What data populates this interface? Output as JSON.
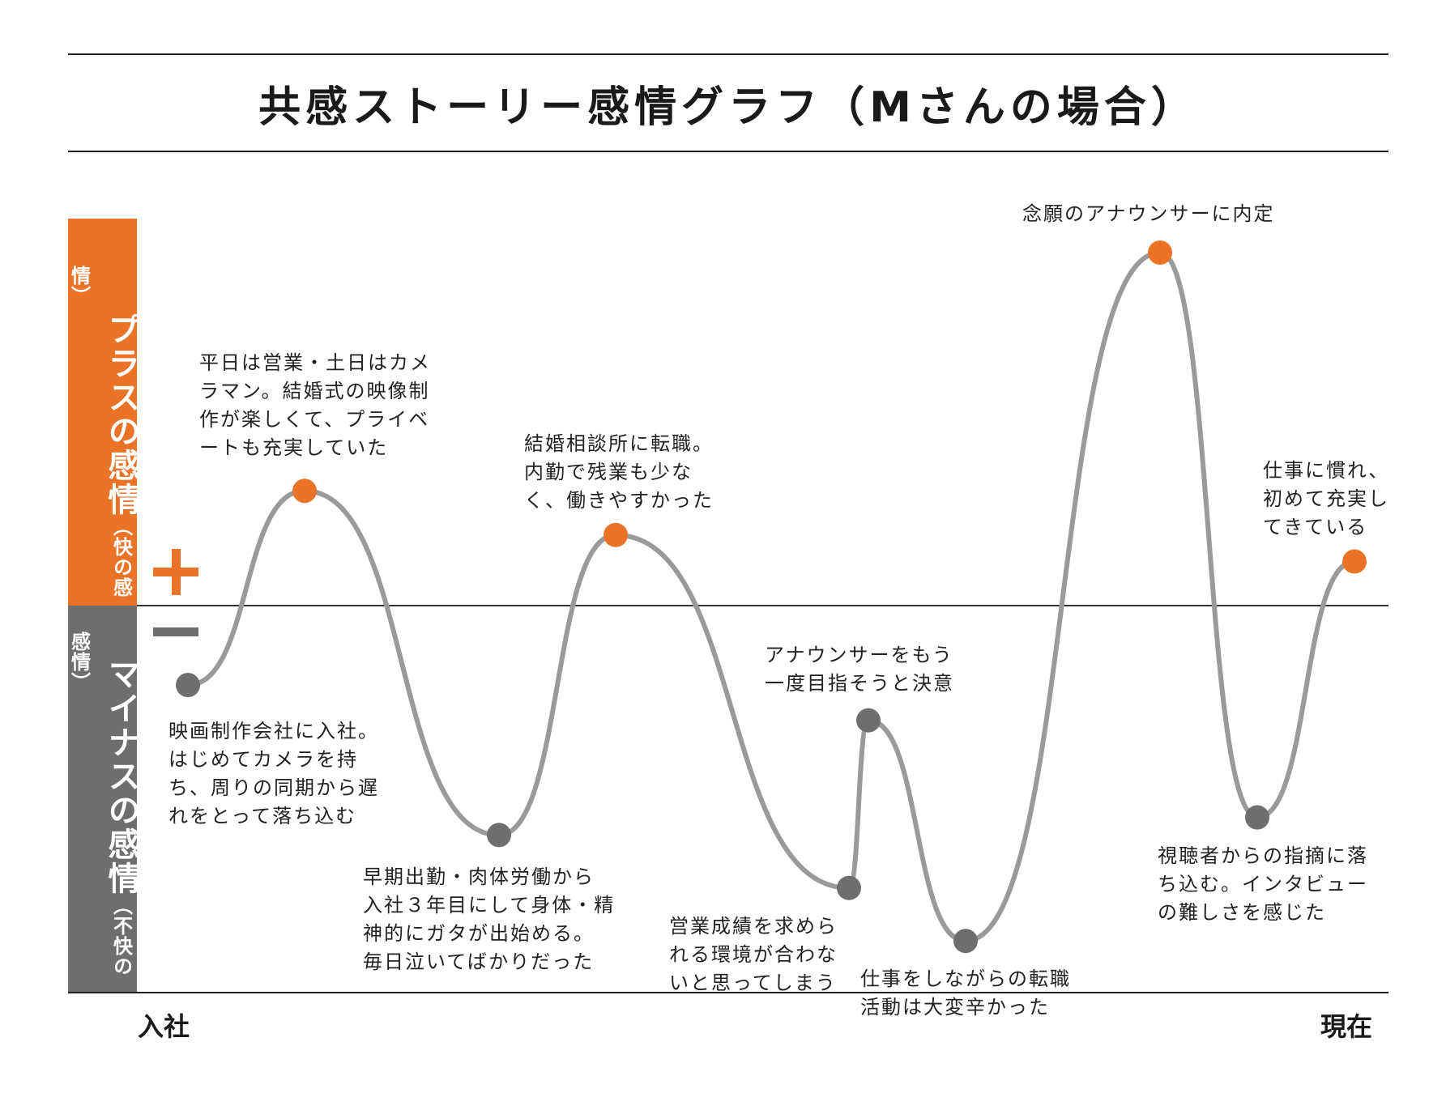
{
  "title": "共感ストーリー感情グラフ（Mさんの場合）",
  "bands": {
    "plus": {
      "label": "プラスの感情",
      "sub": "（快の感情）",
      "color": "#ea7327"
    },
    "minus": {
      "label": "マイナスの感情",
      "sub": "（不快の感情）",
      "color": "#6e6e6e"
    }
  },
  "chart_data": {
    "type": "line",
    "title": "共感ストーリー感情グラフ（Mさんの場合）",
    "xlabel": "",
    "ylabel": "",
    "x_start_label": "入社",
    "x_end_label": "現在",
    "ylim": [
      -5,
      5
    ],
    "grid": false,
    "zero_line": true,
    "colors": {
      "positive": "#ea7327",
      "negative": "#6e6e6e",
      "line": "#9a9a9a"
    },
    "points": [
      {
        "x": 0.0,
        "y": -0.9,
        "label": "映画制作会社に入社。\nはじめてカメラを持\nち、周りの同期から遅\nれをとって落ち込む"
      },
      {
        "x": 0.6,
        "y": 1.3,
        "label": "平日は営業・土日はカメ\nラマン。結婚式の映像制\n作が楽しくて、プライベ\nートも充実していた"
      },
      {
        "x": 1.6,
        "y": -2.6,
        "label": "早期出勤・肉体労働から\n入社３年目にして身体・精\n神的にガタが出始める。\n毎日泣いてばかりだった"
      },
      {
        "x": 2.2,
        "y": 0.8,
        "label": "結婚相談所に転職。\n内勤で残業も少な\nく、働きやすかった"
      },
      {
        "x": 3.4,
        "y": -3.2,
        "label": "営業成績を求めら\nれる環境が合わな\nいと思ってしまう"
      },
      {
        "x": 3.5,
        "y": -1.3,
        "label": "アナウンサーをもう\n一度目指そうと決意"
      },
      {
        "x": 4.0,
        "y": -3.8,
        "label": "仕事をしながらの転職\n活動は大変辛かった"
      },
      {
        "x": 5.0,
        "y": 4.0,
        "label": "念願のアナウンサーに内定"
      },
      {
        "x": 5.5,
        "y": -2.4,
        "label": "視聴者からの指摘に落\nち込む。インタビュー\nの難しさを感じた"
      },
      {
        "x": 6.0,
        "y": 0.5,
        "label": "仕事に慣れ、\n初めて充実し\nてきている"
      }
    ]
  }
}
